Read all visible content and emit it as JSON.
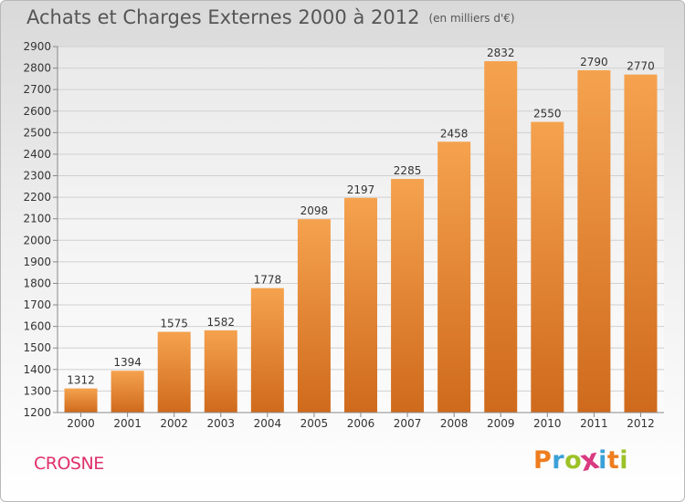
{
  "header": {
    "title": "Achats et Charges Externes 2000 à 2012",
    "unit": "(en milliers d'€)"
  },
  "footer": {
    "commune": "CROSNE",
    "logo": {
      "letters": [
        "P",
        "r",
        "o",
        "x",
        "i",
        "t",
        "i"
      ]
    }
  },
  "colors": {
    "bar_top": "#f5a24e",
    "bar_bottom": "#cf6a1c",
    "commune": "#e0306a",
    "title": "#555555",
    "logo": [
      "#ee7d1e",
      "#3aa0d8",
      "#9cc227",
      "#d93a80",
      "#3aa0d8",
      "#ee7d1e",
      "#9cc227"
    ]
  },
  "chart_data": {
    "type": "bar",
    "title": "Achats et Charges Externes 2000 à 2012",
    "subtitle": "(en milliers d'€)",
    "categories": [
      "2000",
      "2001",
      "2002",
      "2003",
      "2004",
      "2005",
      "2006",
      "2007",
      "2008",
      "2009",
      "2010",
      "2011",
      "2012"
    ],
    "values": [
      1312,
      1394,
      1575,
      1582,
      1778,
      2098,
      2197,
      2285,
      2458,
      2832,
      2550,
      2790,
      2770
    ],
    "ylim": [
      1200,
      2900
    ],
    "yticks": [
      1200,
      1300,
      1400,
      1500,
      1600,
      1700,
      1800,
      1900,
      2000,
      2100,
      2200,
      2300,
      2400,
      2500,
      2600,
      2700,
      2800,
      2900
    ],
    "grid": true,
    "data_labels": true,
    "legend": "none"
  }
}
